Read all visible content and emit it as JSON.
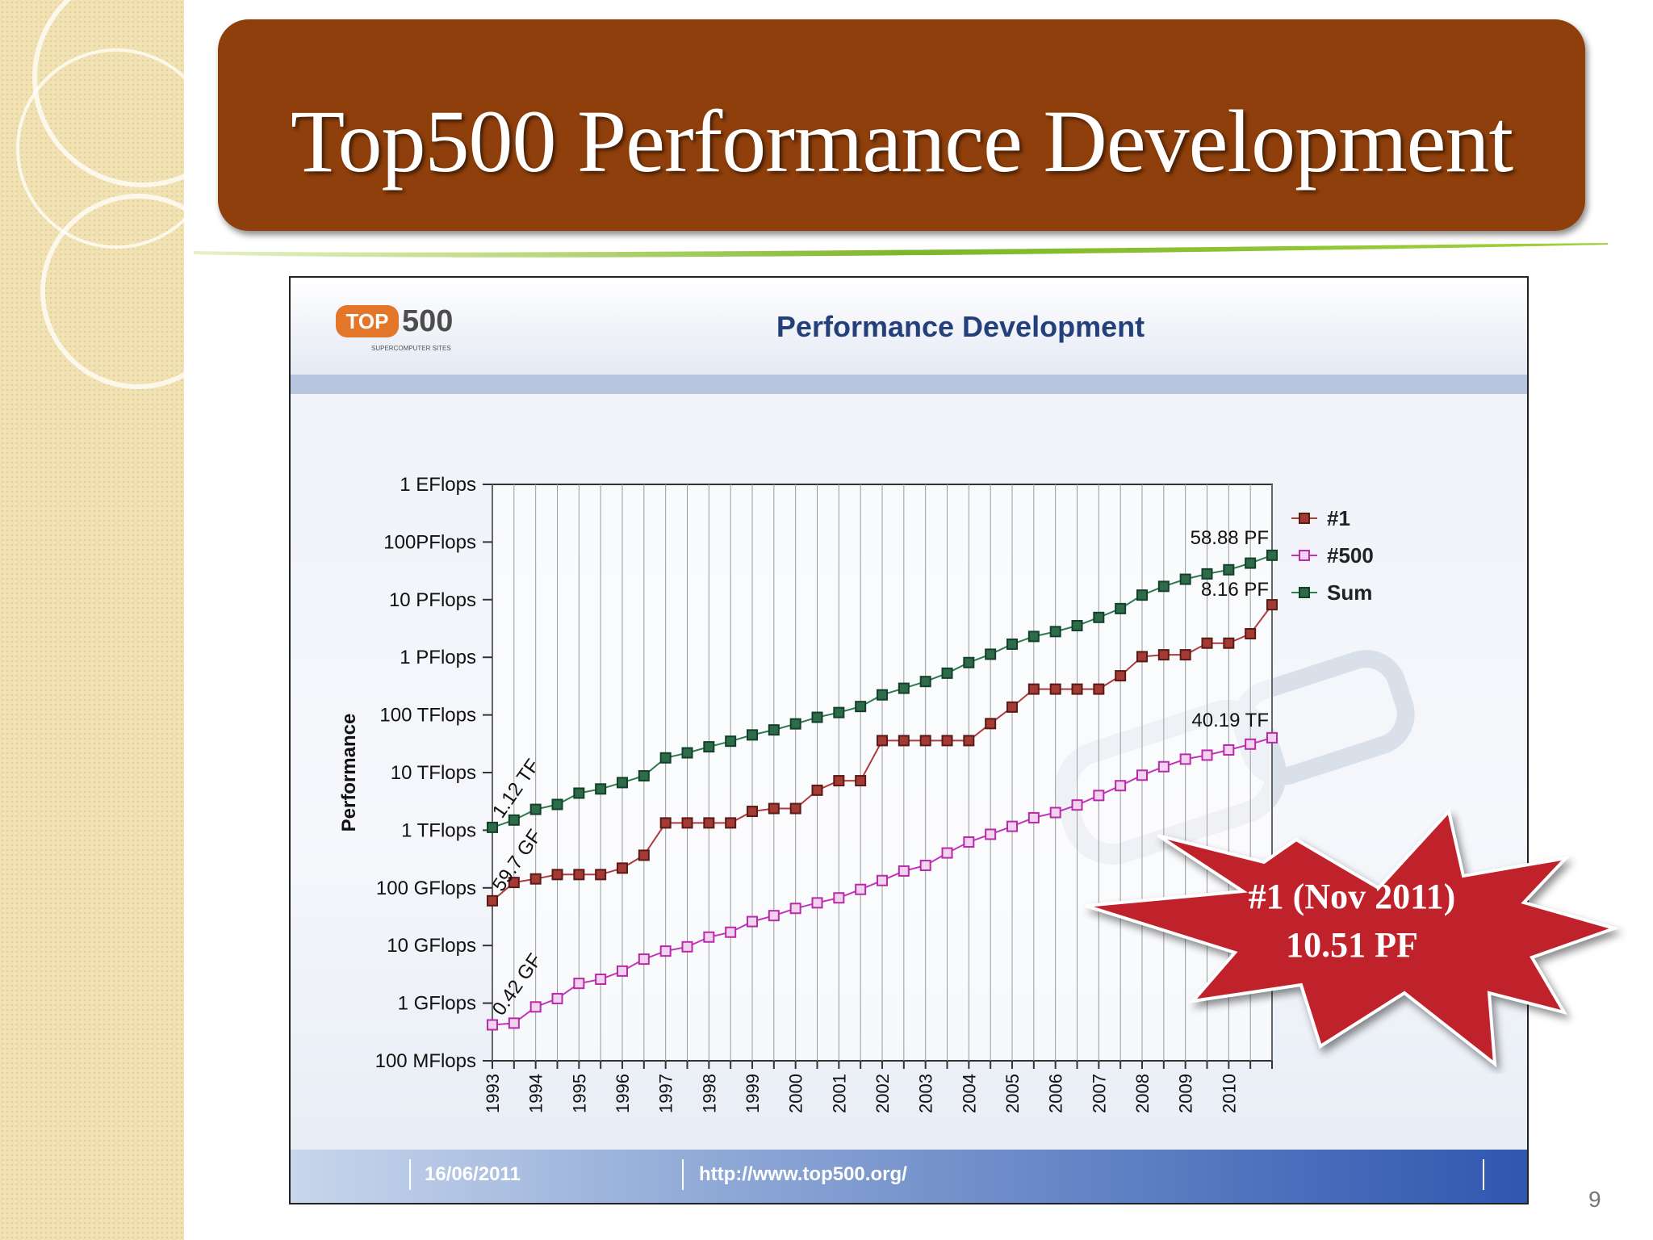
{
  "slide": {
    "title": "Top500 Performance Development",
    "page_number": "9"
  },
  "colors": {
    "title_bar": "#8e3f0b",
    "accent_line": "#7fb52b",
    "series_1": "#b03b3b",
    "series_500": "#c036b6",
    "series_sum": "#2f7a50",
    "burst": "#c0222c"
  },
  "chart_header": {
    "logo_text_top": "TOP",
    "logo_text_500": "500",
    "logo_sub": "SUPERCOMPUTER SITES",
    "title": "Performance Development"
  },
  "chart_footer": {
    "date": "16/06/2011",
    "url": "http://www.top500.org/"
  },
  "callout": {
    "line1": "#1 (Nov 2011)",
    "line2": "10.51 PF"
  },
  "chart_data": {
    "type": "line",
    "ylabel": "Performance",
    "y_scale": "log",
    "y_unit": "GFlops",
    "ylim": [
      0.1,
      1000000000
    ],
    "y_ticks": [
      {
        "value": 1000000000,
        "label": "1 EFlops"
      },
      {
        "value": 100000000,
        "label": "100PFlops"
      },
      {
        "value": 10000000,
        "label": "10 PFlops"
      },
      {
        "value": 1000000,
        "label": "1 PFlops"
      },
      {
        "value": 100000,
        "label": "100 TFlops"
      },
      {
        "value": 10000,
        "label": "10 TFlops"
      },
      {
        "value": 1000,
        "label": "1 TFlops"
      },
      {
        "value": 100,
        "label": "100 GFlops"
      },
      {
        "value": 10,
        "label": "10 GFlops"
      },
      {
        "value": 1,
        "label": "1 GFlops"
      },
      {
        "value": 0.1,
        "label": "100 MFlops"
      }
    ],
    "xlim": [
      1993,
      2011
    ],
    "x_tick_labels": [
      "1993",
      "1994",
      "1995",
      "1996",
      "1997",
      "1998",
      "1999",
      "2000",
      "2001",
      "2002",
      "2003",
      "2004",
      "2005",
      "2006",
      "2007",
      "2008",
      "2009",
      "2010"
    ],
    "grid": true,
    "legend_position": "right",
    "x": [
      1993.0,
      1993.5,
      1994.0,
      1994.5,
      1995.0,
      1995.5,
      1996.0,
      1996.5,
      1997.0,
      1997.5,
      1998.0,
      1998.5,
      1999.0,
      1999.5,
      2000.0,
      2000.5,
      2001.0,
      2001.5,
      2002.0,
      2002.5,
      2003.0,
      2003.5,
      2004.0,
      2004.5,
      2005.0,
      2005.5,
      2006.0,
      2006.5,
      2007.0,
      2007.5,
      2008.0,
      2008.5,
      2009.0,
      2009.5,
      2010.0,
      2010.5,
      2011.0
    ],
    "series": [
      {
        "name": "#1",
        "values": [
          59.7,
          124,
          143,
          170,
          170,
          170,
          220,
          368,
          1338,
          1338,
          1338,
          1338,
          2121,
          2380,
          2380,
          4938,
          7226,
          7226,
          35860,
          35860,
          35860,
          35860,
          35860,
          70720,
          136800,
          280600,
          280600,
          280600,
          280600,
          478200,
          1026000,
          1105000,
          1105000,
          1759000,
          1759000,
          2566000,
          8162000
        ]
      },
      {
        "name": "#500",
        "values": [
          0.42,
          0.45,
          0.86,
          1.2,
          2.2,
          2.6,
          3.6,
          5.8,
          8,
          9.5,
          14,
          17,
          26,
          33,
          44,
          55,
          67,
          94,
          134,
          196,
          245,
          403,
          624,
          850,
          1166,
          1646,
          2026,
          2736,
          4005,
          5929,
          9000,
          12640,
          17100,
          20050,
          24670,
          31120,
          40190
        ]
      },
      {
        "name": "Sum",
        "values": [
          1120,
          1500,
          2300,
          2800,
          4400,
          5200,
          6700,
          8800,
          18000,
          22000,
          28000,
          35000,
          45000,
          55000,
          70000,
          91000,
          110000,
          140000,
          223000,
          290000,
          380000,
          530000,
          810000,
          1130000,
          1690000,
          2300000,
          2790000,
          3540000,
          4920000,
          7000000,
          12000000,
          17000000,
          22600000,
          28000000,
          33000000,
          43000000,
          58880000
        ]
      }
    ],
    "annotations": [
      {
        "text": "1.12 TF",
        "series": "Sum",
        "x": 1993.0
      },
      {
        "text": "59.7 GF",
        "series": "#1",
        "x": 1993.0
      },
      {
        "text": "0.42 GF",
        "series": "#500",
        "x": 1993.0
      },
      {
        "text": "58.88 PF",
        "series": "Sum",
        "x": 2011.0
      },
      {
        "text": "8.16 PF",
        "series": "#1",
        "x": 2011.0
      },
      {
        "text": "40.19 TF",
        "series": "#500",
        "x": 2011.0
      }
    ]
  }
}
